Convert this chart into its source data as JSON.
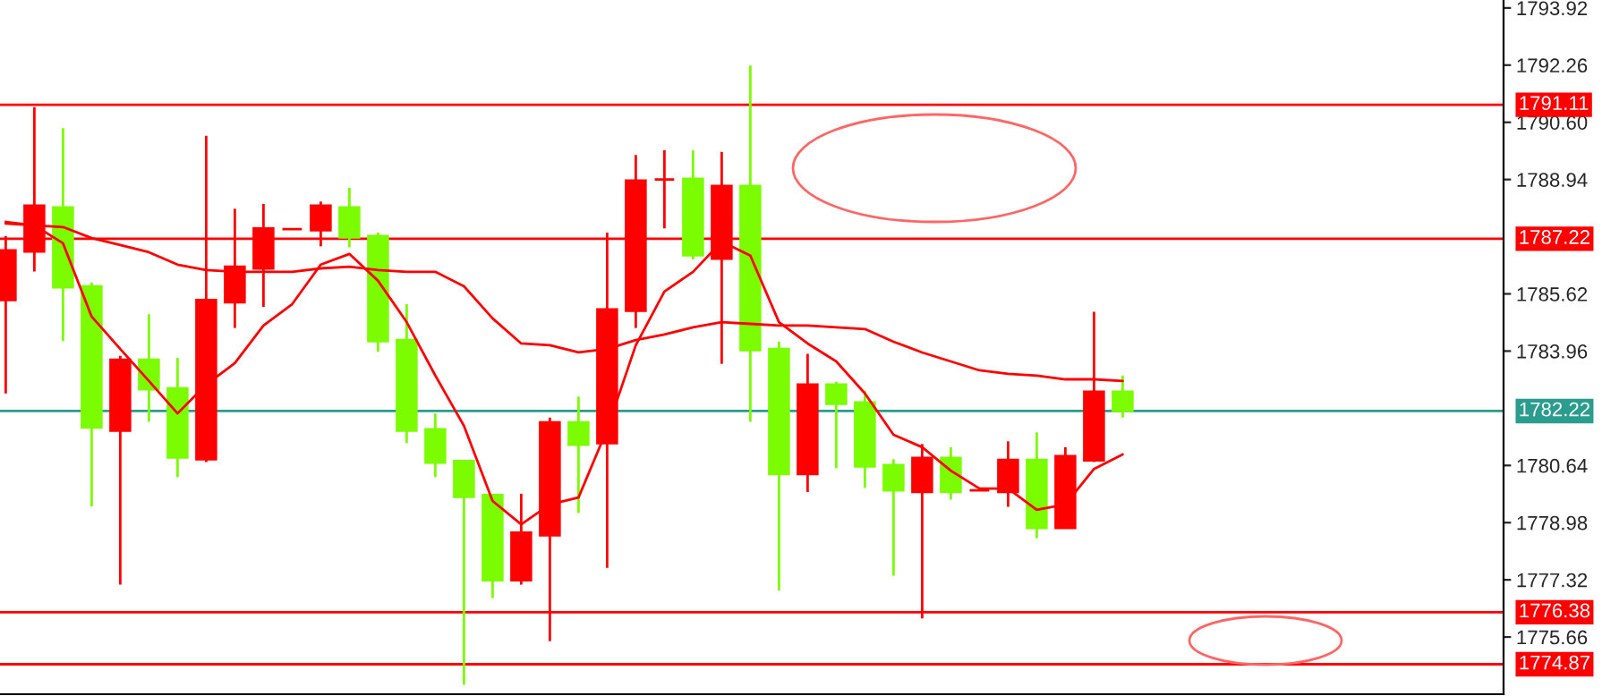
{
  "chart_data": {
    "type": "candlestick",
    "categories": [
      null,
      null,
      null,
      null,
      null,
      null,
      null,
      null,
      null,
      null,
      null,
      null,
      null,
      null,
      null,
      null,
      null,
      null,
      null,
      null,
      null,
      null,
      null,
      null,
      null,
      null,
      null,
      null,
      null,
      null,
      null,
      null,
      null,
      null,
      null,
      null,
      null,
      null,
      null,
      null
    ],
    "ohlc": [
      [
        1785.44,
        1787.3,
        1782.73,
        1786.88
      ],
      [
        1786.85,
        1791.04,
        1786.27,
        1788.18
      ],
      [
        1788.13,
        1790.43,
        1784.25,
        1785.81
      ],
      [
        1785.84,
        1785.95,
        1779.45,
        1781.74
      ],
      [
        1781.65,
        1783.82,
        1777.18,
        1783.71
      ],
      [
        1783.71,
        1785.03,
        1781.91,
        1782.85
      ],
      [
        1782.88,
        1783.76,
        1780.3,
        1780.87
      ],
      [
        1780.82,
        1790.21,
        1780.74,
        1785.44
      ],
      [
        1785.38,
        1788.09,
        1784.63,
        1786.41
      ],
      [
        1786.36,
        1788.23,
        1785.24,
        1787.52
      ],
      [
        1787.5,
        1787.5,
        1787.5,
        1787.5
      ],
      [
        1787.47,
        1788.3,
        1787.0,
        1788.18
      ],
      [
        1788.13,
        1788.7,
        1786.97,
        1787.26
      ],
      [
        1787.3,
        1787.4,
        1783.94,
        1784.25
      ],
      [
        1784.28,
        1785.32,
        1781.29,
        1781.65
      ],
      [
        1781.69,
        1782.15,
        1780.3,
        1780.72
      ],
      [
        1780.77,
        1780.77,
        1774.27,
        1779.73
      ],
      [
        1779.78,
        1779.78,
        1776.79,
        1777.31
      ],
      [
        1777.31,
        1779.82,
        1777.18,
        1778.69
      ],
      [
        1778.61,
        1782.03,
        1775.54,
        1781.89
      ],
      [
        1781.89,
        1782.64,
        1779.26,
        1781.24
      ],
      [
        1781.29,
        1787.4,
        1777.67,
        1785.17
      ],
      [
        1785.13,
        1789.65,
        1784.63,
        1788.91
      ],
      [
        1788.94,
        1789.79,
        1787.52,
        1788.94
      ],
      [
        1788.96,
        1789.79,
        1786.62,
        1786.74
      ],
      [
        1786.64,
        1789.74,
        1783.59,
        1788.75
      ],
      [
        1788.75,
        1792.25,
        1781.91,
        1783.99
      ],
      [
        1784.02,
        1784.23,
        1777.01,
        1780.39
      ],
      [
        1780.39,
        1783.88,
        1779.87,
        1782.99
      ],
      [
        1782.99,
        1783.07,
        1780.56,
        1782.43
      ],
      [
        1782.47,
        1782.81,
        1779.99,
        1780.61
      ],
      [
        1780.65,
        1780.82,
        1777.44,
        1779.92
      ],
      [
        1779.87,
        1781.26,
        1776.2,
        1780.86
      ],
      [
        1780.86,
        1781.17,
        1779.65,
        1779.87
      ],
      [
        1779.92,
        1779.92,
        1779.92,
        1779.92
      ],
      [
        1779.87,
        1781.34,
        1779.44,
        1780.8
      ],
      [
        1780.8,
        1781.6,
        1778.53,
        1778.83
      ],
      [
        1778.83,
        1781.17,
        1778.83,
        1780.91
      ],
      [
        1780.79,
        1785.1,
        1780.74,
        1782.78
      ],
      [
        1782.78,
        1783.25,
        1782.03,
        1782.22
      ]
    ],
    "series": [
      {
        "type": "line",
        "color": "#ff0000",
        "values": [
          1787.66,
          1787.61,
          1787.09,
          1784.96,
          1784.02,
          1783.09,
          1782.15,
          1782.99,
          1783.61,
          1784.7,
          1785.32,
          1786.47,
          1786.78,
          1786.0,
          1784.8,
          1783.25,
          1781.79,
          1779.61,
          1778.93,
          1779.51,
          1779.71,
          1781.69,
          1784.13,
          1785.69,
          1786.26,
          1787.14,
          1786.73,
          1784.8,
          1784.18,
          1783.66,
          1782.73,
          1781.53,
          1781.17,
          1780.49,
          1779.97,
          1779.97,
          1779.35,
          1779.51,
          1780.54,
          1780.96
        ]
      },
      {
        "type": "line",
        "color": "#ff0000",
        "values": [
          1787.71,
          1787.61,
          1787.56,
          1787.24,
          1787.04,
          1786.83,
          1786.47,
          1786.31,
          1786.26,
          1786.26,
          1786.26,
          1786.36,
          1786.41,
          1786.31,
          1786.26,
          1786.26,
          1785.84,
          1784.91,
          1784.18,
          1784.13,
          1783.92,
          1784.02,
          1784.28,
          1784.44,
          1784.65,
          1784.8,
          1784.75,
          1784.7,
          1784.7,
          1784.65,
          1784.6,
          1784.23,
          1783.92,
          1783.66,
          1783.4,
          1783.3,
          1783.25,
          1783.14,
          1783.14,
          1783.09
        ]
      }
    ],
    "ylim": [
      1774.0,
      1794.15
    ],
    "yticks": [
      1793.92,
      1792.26,
      {
        "value": 1790.6,
        "label": "1790.60"
      },
      1788.94,
      1785.62,
      1783.96,
      1780.64,
      1778.98,
      1777.32,
      1775.66
    ],
    "ref_lines": [
      {
        "axis": "y",
        "value": 1791.11,
        "label": "1791.11",
        "color": "#ff0000"
      },
      {
        "axis": "y",
        "value": 1787.22,
        "label": "1787.22",
        "color": "#ff0000"
      },
      {
        "axis": "y",
        "value": 1782.22,
        "label": "1782.22",
        "color": "#2a9d8f"
      },
      {
        "axis": "y",
        "value": 1776.38,
        "label": "1776.38",
        "color": "#ff0000"
      },
      {
        "axis": "y",
        "value": 1774.87,
        "label": "1774.87",
        "color": "#ff0000"
      }
    ],
    "tick_labels": "y",
    "grid": false,
    "legend": false
  }
}
